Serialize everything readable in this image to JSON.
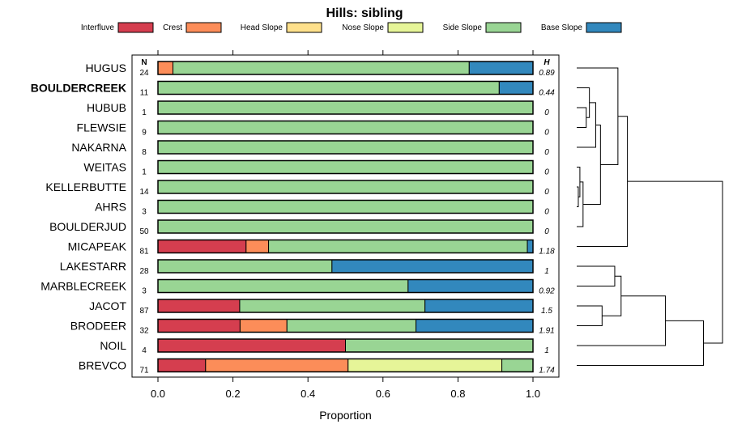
{
  "chart_data": {
    "type": "bar",
    "orientation": "horizontal",
    "stacked": true,
    "title": "Hills: sibling",
    "xlabel": "Proportion",
    "xlim": [
      0,
      1
    ],
    "xticks": [
      "0.0",
      "0.2",
      "0.4",
      "0.6",
      "0.8",
      "1.0"
    ],
    "n_header": "N",
    "h_header": "H",
    "legend": [
      {
        "name": "Interfluve",
        "color": "#d53e4f"
      },
      {
        "name": "Crest",
        "color": "#fc8d59"
      },
      {
        "name": "Head Slope",
        "color": "#fee08b"
      },
      {
        "name": "Nose Slope",
        "color": "#e6f598"
      },
      {
        "name": "Side Slope",
        "color": "#99d594"
      },
      {
        "name": "Base Slope",
        "color": "#3288bd"
      }
    ],
    "rows": [
      {
        "name": "HUGUS",
        "bold": false,
        "n": "24",
        "h": "0.89",
        "values": [
          0,
          0.04,
          0,
          0,
          0.79,
          0.17
        ]
      },
      {
        "name": "BOULDERCREEK",
        "bold": true,
        "n": "11",
        "h": "0.44",
        "values": [
          0,
          0,
          0,
          0,
          0.91,
          0.09
        ]
      },
      {
        "name": "HUBUB",
        "bold": false,
        "n": "1",
        "h": "0",
        "values": [
          0,
          0,
          0,
          0,
          1,
          0
        ]
      },
      {
        "name": "FLEWSIE",
        "bold": false,
        "n": "9",
        "h": "0",
        "values": [
          0,
          0,
          0,
          0,
          1,
          0
        ]
      },
      {
        "name": "NAKARNA",
        "bold": false,
        "n": "8",
        "h": "0",
        "values": [
          0,
          0,
          0,
          0,
          1,
          0
        ]
      },
      {
        "name": "WEITAS",
        "bold": false,
        "n": "1",
        "h": "0",
        "values": [
          0,
          0,
          0,
          0,
          1,
          0
        ]
      },
      {
        "name": "KELLERBUTTE",
        "bold": false,
        "n": "14",
        "h": "0",
        "values": [
          0,
          0,
          0,
          0,
          1,
          0
        ]
      },
      {
        "name": "AHRS",
        "bold": false,
        "n": "3",
        "h": "0",
        "values": [
          0,
          0,
          0,
          0,
          1,
          0
        ]
      },
      {
        "name": "BOULDERJUD",
        "bold": false,
        "n": "50",
        "h": "0",
        "values": [
          0,
          0,
          0,
          0,
          1,
          0
        ]
      },
      {
        "name": "MICAPEAK",
        "bold": false,
        "n": "81",
        "h": "1.18",
        "values": [
          0.235,
          0.06,
          0,
          0,
          0.69,
          0.015
        ]
      },
      {
        "name": "LAKESTARR",
        "bold": false,
        "n": "28",
        "h": "1",
        "values": [
          0,
          0,
          0,
          0,
          0.464,
          0.536
        ]
      },
      {
        "name": "MARBLECREEK",
        "bold": false,
        "n": "3",
        "h": "0.92",
        "values": [
          0,
          0,
          0,
          0,
          0.667,
          0.333
        ]
      },
      {
        "name": "JACOT",
        "bold": false,
        "n": "87",
        "h": "1.5",
        "values": [
          0.218,
          0,
          0,
          0,
          0.494,
          0.288
        ]
      },
      {
        "name": "BRODEER",
        "bold": false,
        "n": "32",
        "h": "1.91",
        "values": [
          0.219,
          0.125,
          0,
          0,
          0.344,
          0.312
        ]
      },
      {
        "name": "NOIL",
        "bold": false,
        "n": "4",
        "h": "1",
        "values": [
          0.5,
          0,
          0,
          0,
          0.5,
          0
        ]
      },
      {
        "name": "BREVCO",
        "bold": false,
        "n": "71",
        "h": "1.74",
        "values": [
          0.127,
          0.38,
          0,
          0.41,
          0.083,
          0
        ]
      }
    ],
    "dendrogram_merges": [
      {
        "a": 6,
        "b": 7,
        "h": 0.05
      },
      {
        "a": "m0",
        "b": 5,
        "h": 0.1
      },
      {
        "a": "m1",
        "b": 8,
        "h": 0.2
      },
      {
        "a": 2,
        "b": 3,
        "h": 0.3
      },
      {
        "a": 1,
        "b": "m3",
        "h": 0.4
      },
      {
        "a": "m4",
        "b": 4,
        "h": 0.6
      },
      {
        "a": "m5",
        "b": "m2",
        "h": 0.75
      },
      {
        "a": 0,
        "b": "m6",
        "h": 1.3
      },
      {
        "a": "m7",
        "b": 9,
        "h": 1.6
      },
      {
        "a": 12,
        "b": 13,
        "h": 0.8
      },
      {
        "a": 10,
        "b": 11,
        "h": 1.2
      },
      {
        "a": "m10",
        "b": "m9",
        "h": 1.4
      },
      {
        "a": "m11",
        "b": 14,
        "h": 2.8
      },
      {
        "a": "m12",
        "b": 15,
        "h": 4.0
      },
      {
        "a": "m8",
        "b": "m13",
        "h": 4.6
      }
    ],
    "dendrogram_max_height": 4.6
  }
}
